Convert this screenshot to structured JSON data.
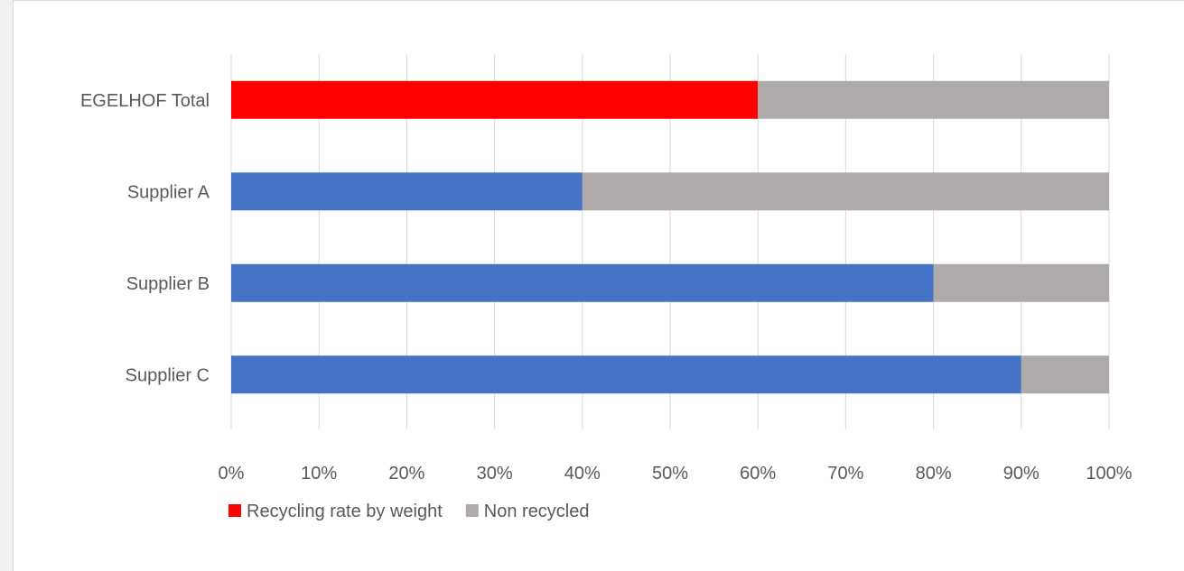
{
  "chart_data": {
    "type": "bar",
    "orientation": "horizontal",
    "stacked": true,
    "percent_stacked": true,
    "title": "",
    "xlabel": "",
    "ylabel": "",
    "categories": [
      "EGELHOF Total",
      "Supplier A",
      "Supplier B",
      "Supplier C"
    ],
    "series": [
      {
        "name": "Recycling rate by weight",
        "values": [
          60,
          40,
          80,
          90
        ],
        "colors": [
          "#ff0000",
          "#4472c4",
          "#4472c4",
          "#4472c4"
        ]
      },
      {
        "name": "Non recycled",
        "values": [
          40,
          60,
          20,
          10
        ],
        "colors": [
          "#aeaaaa",
          "#aeaaaa",
          "#aeaaaa",
          "#aeaaaa"
        ]
      }
    ],
    "xlim": [
      0,
      100
    ],
    "x_ticks": [
      0,
      10,
      20,
      30,
      40,
      50,
      60,
      70,
      80,
      90,
      100
    ],
    "x_tick_labels": [
      "0%",
      "10%",
      "20%",
      "30%",
      "40%",
      "50%",
      "60%",
      "70%",
      "80%",
      "90%",
      "100%"
    ],
    "grid": "vertical",
    "legend": {
      "position": "bottom-left",
      "entries": [
        {
          "label": "Recycling rate by weight",
          "color": "#ff0000"
        },
        {
          "label": "Non recycled",
          "color": "#aeaaaa"
        }
      ]
    }
  }
}
